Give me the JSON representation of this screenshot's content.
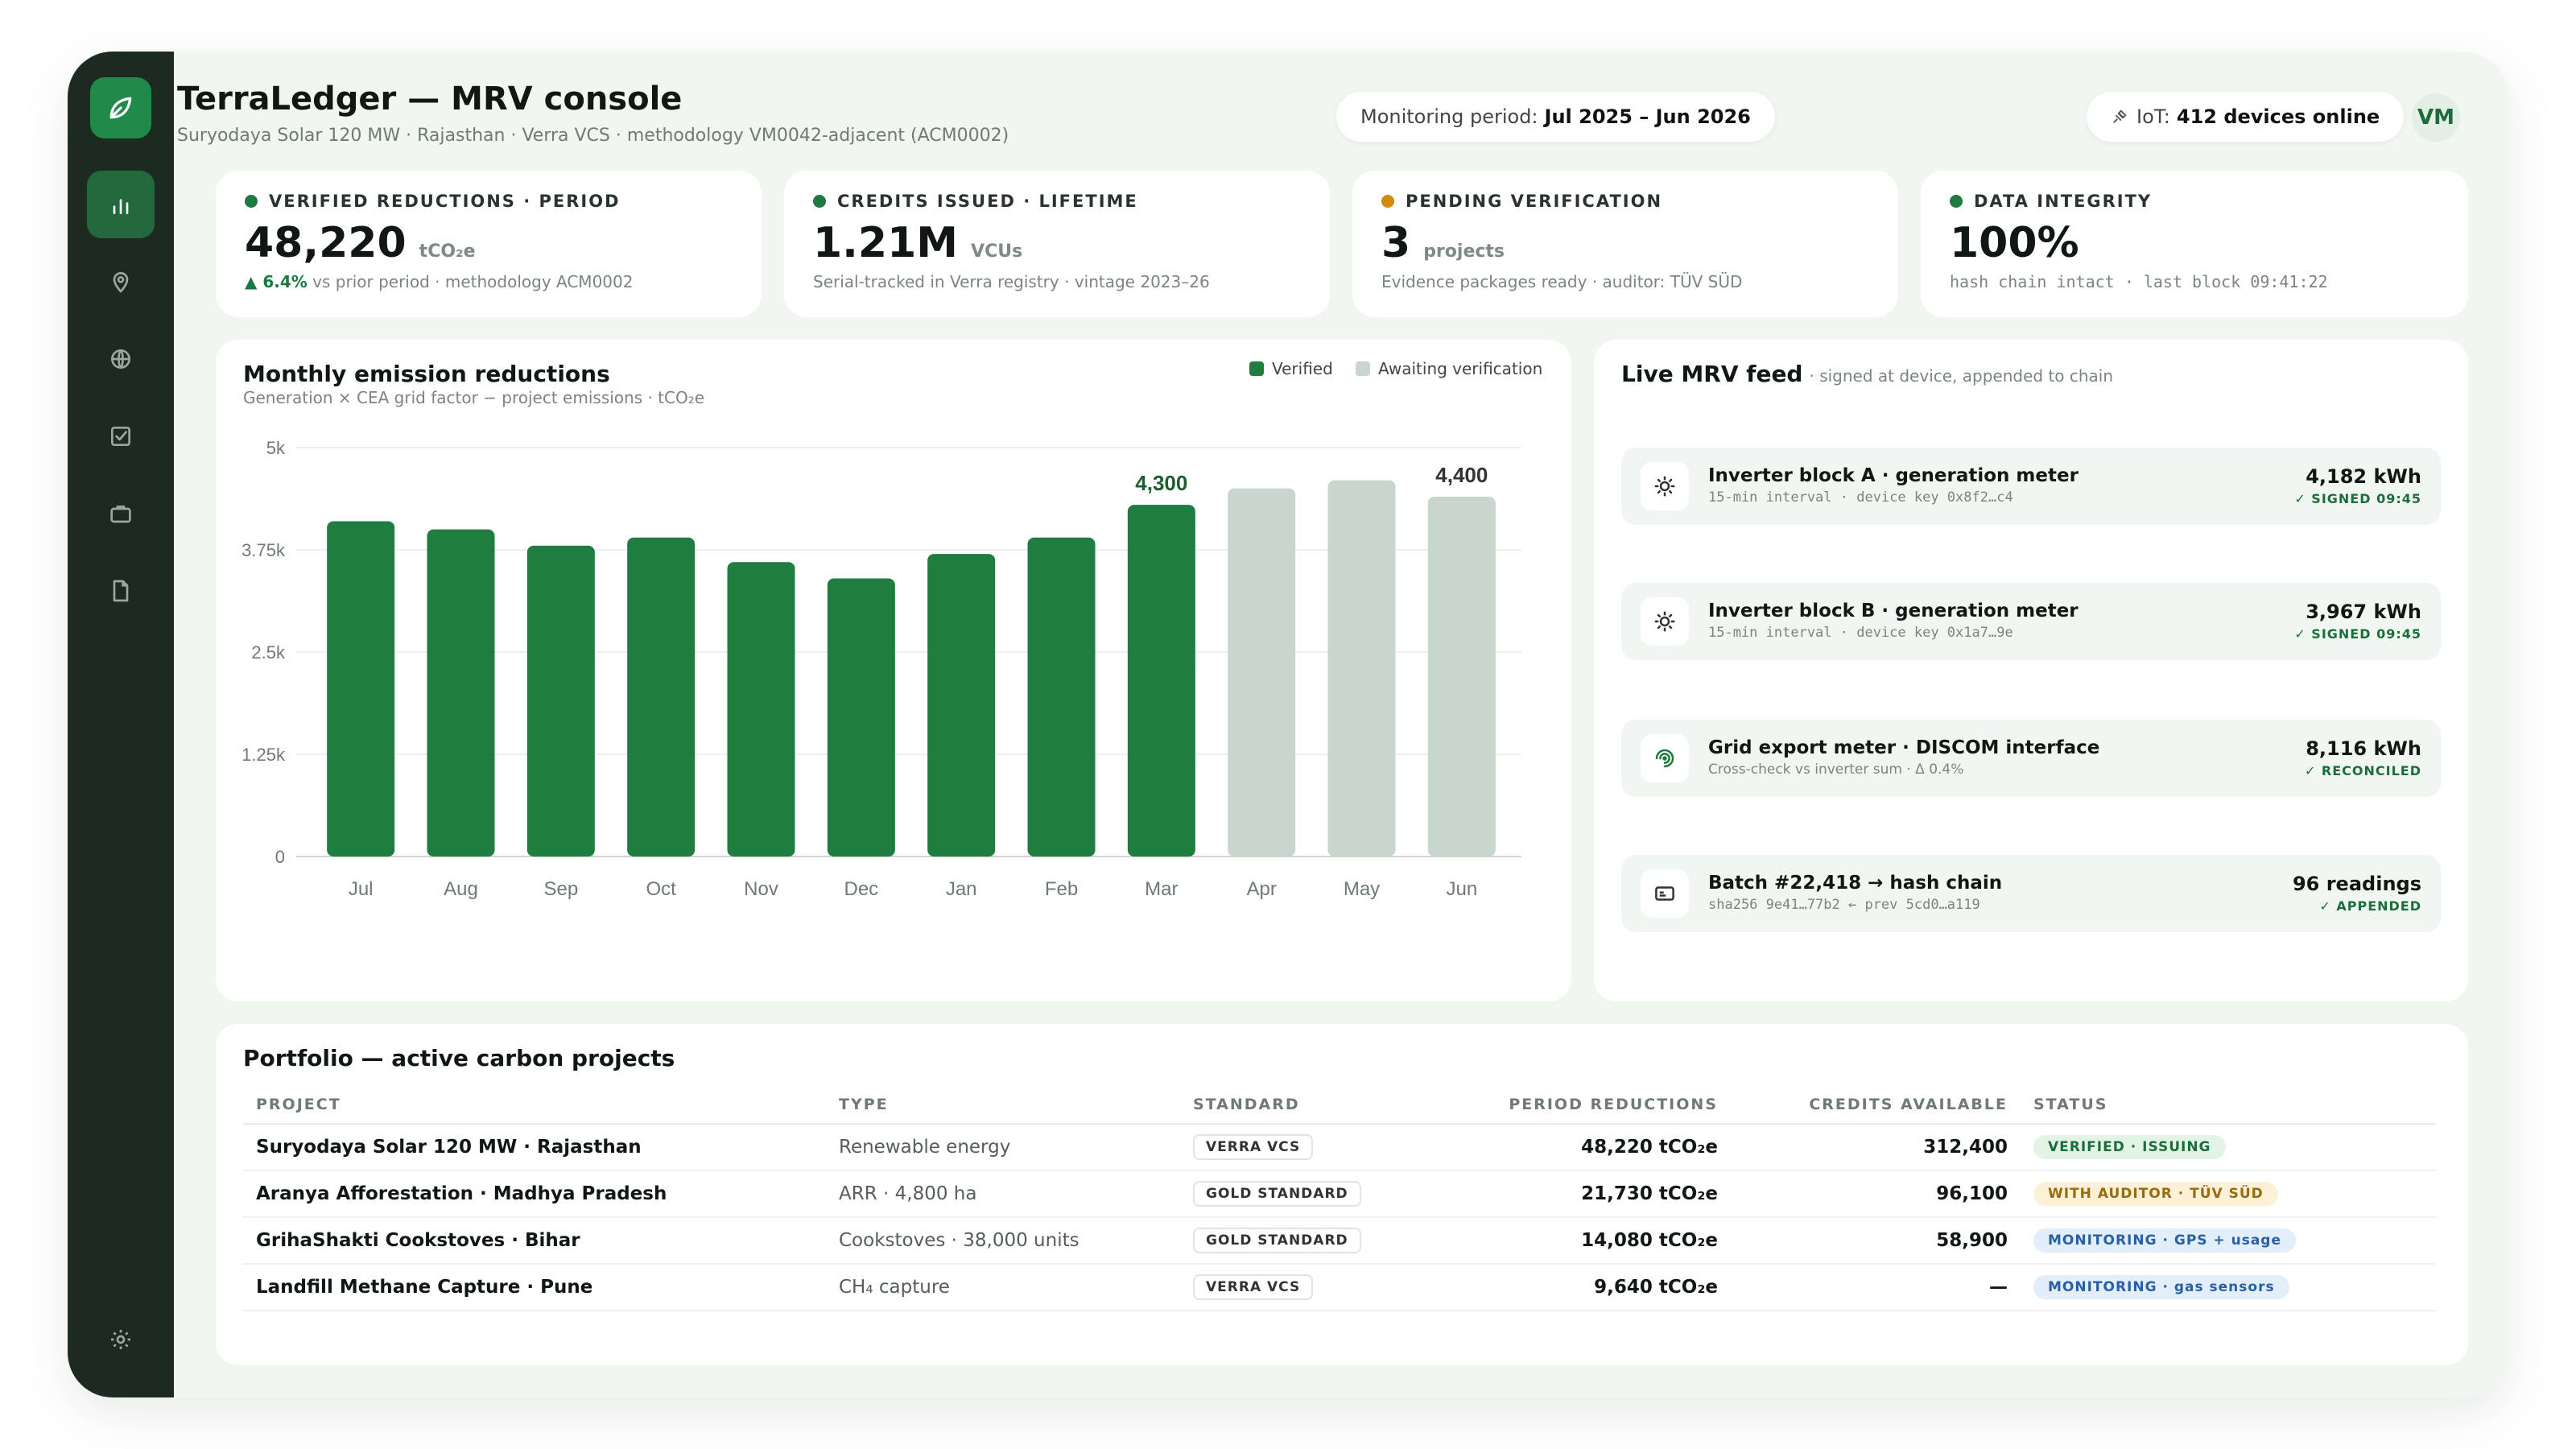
{
  "header": {
    "title": "TerraLedger — MRV console",
    "subtitle": "Suryodaya Solar 120 MW · Rajasthan · Verra VCS · methodology VM0042-adjacent (ACM0002)",
    "period_label": "Monitoring period:",
    "period_value": "Jul 2025 – Jun 2026",
    "iot_label": "IoT:",
    "iot_value": "412 devices online",
    "avatar": "VM"
  },
  "sidebar": {
    "icons": [
      "leaf-logo-icon",
      "bar-chart-icon",
      "map-pin-icon",
      "globe-icon",
      "checkbox-icon",
      "briefcase-icon",
      "document-icon",
      "gear-icon"
    ]
  },
  "kpis": [
    {
      "label": "VERIFIED REDUCTIONS · PERIOD",
      "dot": "#1f7a3f",
      "value": "48,220",
      "unit": "tCO₂e",
      "note_up": "▲ 6.4%",
      "note": " vs prior period · methodology ACM0002"
    },
    {
      "label": "CREDITS ISSUED · LIFETIME",
      "dot": "#1f7a3f",
      "value": "1.21M",
      "unit": "VCUs",
      "note_up": "",
      "note": "Serial-tracked in Verra registry · vintage 2023–26"
    },
    {
      "label": "PENDING VERIFICATION",
      "dot": "#d18a12",
      "value": "3",
      "unit": "projects",
      "note_up": "",
      "note": "Evidence packages ready · auditor: TÜV SÜD"
    },
    {
      "label": "DATA INTEGRITY",
      "dot": "#1f7a3f",
      "value": "100%",
      "unit": "",
      "note_up": "",
      "note": "hash chain intact · last block 09:41:22"
    }
  ],
  "chart_data": {
    "type": "bar",
    "title": "Monthly emission reductions",
    "subtitle": "Generation × CEA grid factor − project emissions · tCO₂e",
    "categories": [
      "Jul",
      "Aug",
      "Sep",
      "Oct",
      "Nov",
      "Dec",
      "Jan",
      "Feb",
      "Mar",
      "Apr",
      "May",
      "Jun"
    ],
    "series": [
      {
        "name": "Verified",
        "color": "#1f7d40",
        "values": [
          4100,
          4000,
          3800,
          3900,
          3600,
          3400,
          3700,
          3900,
          4300,
          null,
          null,
          null
        ]
      },
      {
        "name": "Awaiting verification",
        "color": "#c9d6cd",
        "values": [
          null,
          null,
          null,
          null,
          null,
          null,
          null,
          null,
          null,
          4500,
          4600,
          4400
        ]
      }
    ],
    "data_labels": {
      "Mar": "4,300",
      "Jun": "4,400"
    },
    "yticks": [
      "0",
      "1.25k",
      "2.5k",
      "3.75k",
      "5k"
    ],
    "ylim": [
      0,
      5000
    ],
    "legend": "top-right",
    "grid": true
  },
  "feed": {
    "title": "Live MRV feed",
    "subtitle": "· signed at device, appended to chain",
    "items": [
      {
        "icon": "sun-icon",
        "name": "Inverter block A · generation meter",
        "detail": "15-min interval · device key 0x8f2…c4",
        "value": "4,182 kWh",
        "status": "✓ SIGNED 09:45"
      },
      {
        "icon": "sun-icon",
        "name": "Inverter block B · generation meter",
        "detail": "15-min interval · device key 0x1a7…9e",
        "value": "3,967 kWh",
        "status": "✓ SIGNED 09:45"
      },
      {
        "icon": "gauge-icon",
        "name": "Grid export meter · DISCOM interface",
        "detail": "Cross-check vs inverter sum · Δ 0.4%",
        "value": "8,116 kWh",
        "status": "✓ RECONCILED"
      },
      {
        "icon": "card-icon",
        "name": "Batch #22,418 → hash chain",
        "detail": "sha256 9e41…77b2 ← prev 5cd0…a119",
        "value": "96 readings",
        "status": "✓ APPENDED"
      }
    ]
  },
  "portfolio": {
    "title": "Portfolio — active carbon projects",
    "columns": [
      "PROJECT",
      "TYPE",
      "STANDARD",
      "PERIOD REDUCTIONS",
      "CREDITS AVAILABLE",
      "STATUS"
    ],
    "rows": [
      {
        "project": "Suryodaya Solar 120 MW · Rajasthan",
        "type": "Renewable energy",
        "standard": "VERRA VCS",
        "reductions": "48,220 tCO₂e",
        "credits": "312,400",
        "status": "VERIFIED · ISSUING",
        "status_kind": "green"
      },
      {
        "project": "Aranya Afforestation · Madhya Pradesh",
        "type": "ARR · 4,800 ha",
        "standard": "GOLD STANDARD",
        "reductions": "21,730 tCO₂e",
        "credits": "96,100",
        "status": "WITH AUDITOR · TÜV SÜD",
        "status_kind": "amber"
      },
      {
        "project": "GrihaShakti Cookstoves · Bihar",
        "type": "Cookstoves · 38,000 units",
        "standard": "GOLD STANDARD",
        "reductions": "14,080 tCO₂e",
        "credits": "58,900",
        "status": "MONITORING · GPS + usage",
        "status_kind": "blue"
      },
      {
        "project": "Landfill Methane Capture · Pune",
        "type": "CH₄ capture",
        "standard": "VERRA VCS",
        "reductions": "9,640 tCO₂e",
        "credits": "—",
        "status": "MONITORING · gas sensors",
        "status_kind": "blue"
      }
    ]
  }
}
